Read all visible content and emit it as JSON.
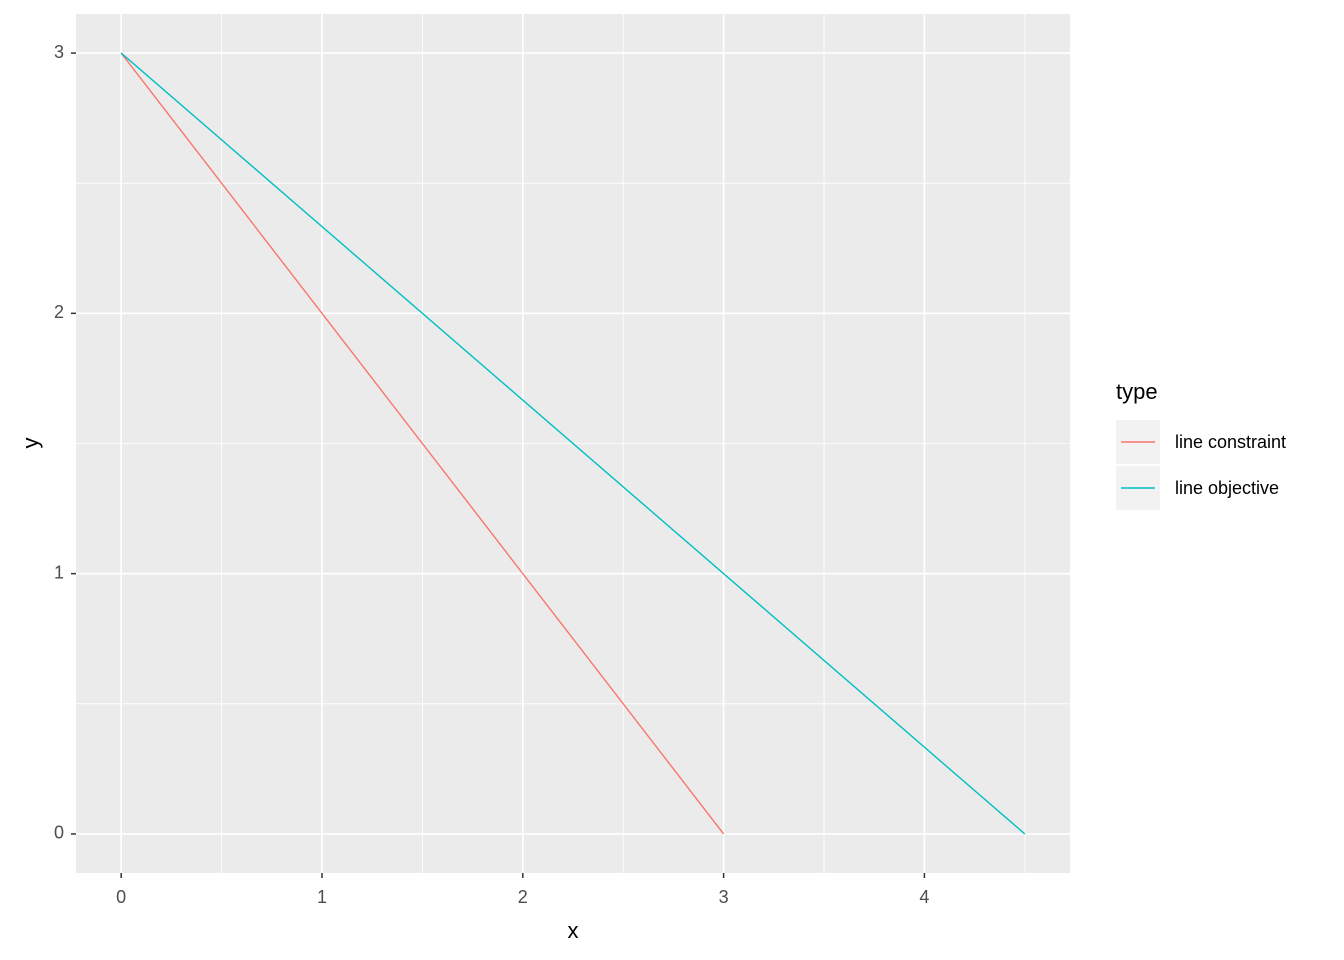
{
  "chart_data": {
    "type": "line",
    "x_label": "x",
    "y_label": "y",
    "legend_title": "type",
    "xlim": [
      -0.225,
      4.725
    ],
    "ylim": [
      -0.15,
      3.15
    ],
    "xticks": [
      0,
      1,
      2,
      3,
      4
    ],
    "yticks": [
      0,
      1,
      2,
      3
    ],
    "xminor": [
      0.5,
      1.5,
      2.5,
      3.5,
      4.5
    ],
    "yminor": [
      0.5,
      1.5,
      2.5
    ],
    "grid": true,
    "legend": "right",
    "series": [
      {
        "name": "line constraint",
        "color": "#F8766D",
        "x": [
          0,
          3
        ],
        "values": [
          3,
          0
        ]
      },
      {
        "name": "line objective",
        "color": "#00BFC4",
        "x": [
          0,
          4.5
        ],
        "values": [
          3,
          0
        ]
      }
    ]
  }
}
